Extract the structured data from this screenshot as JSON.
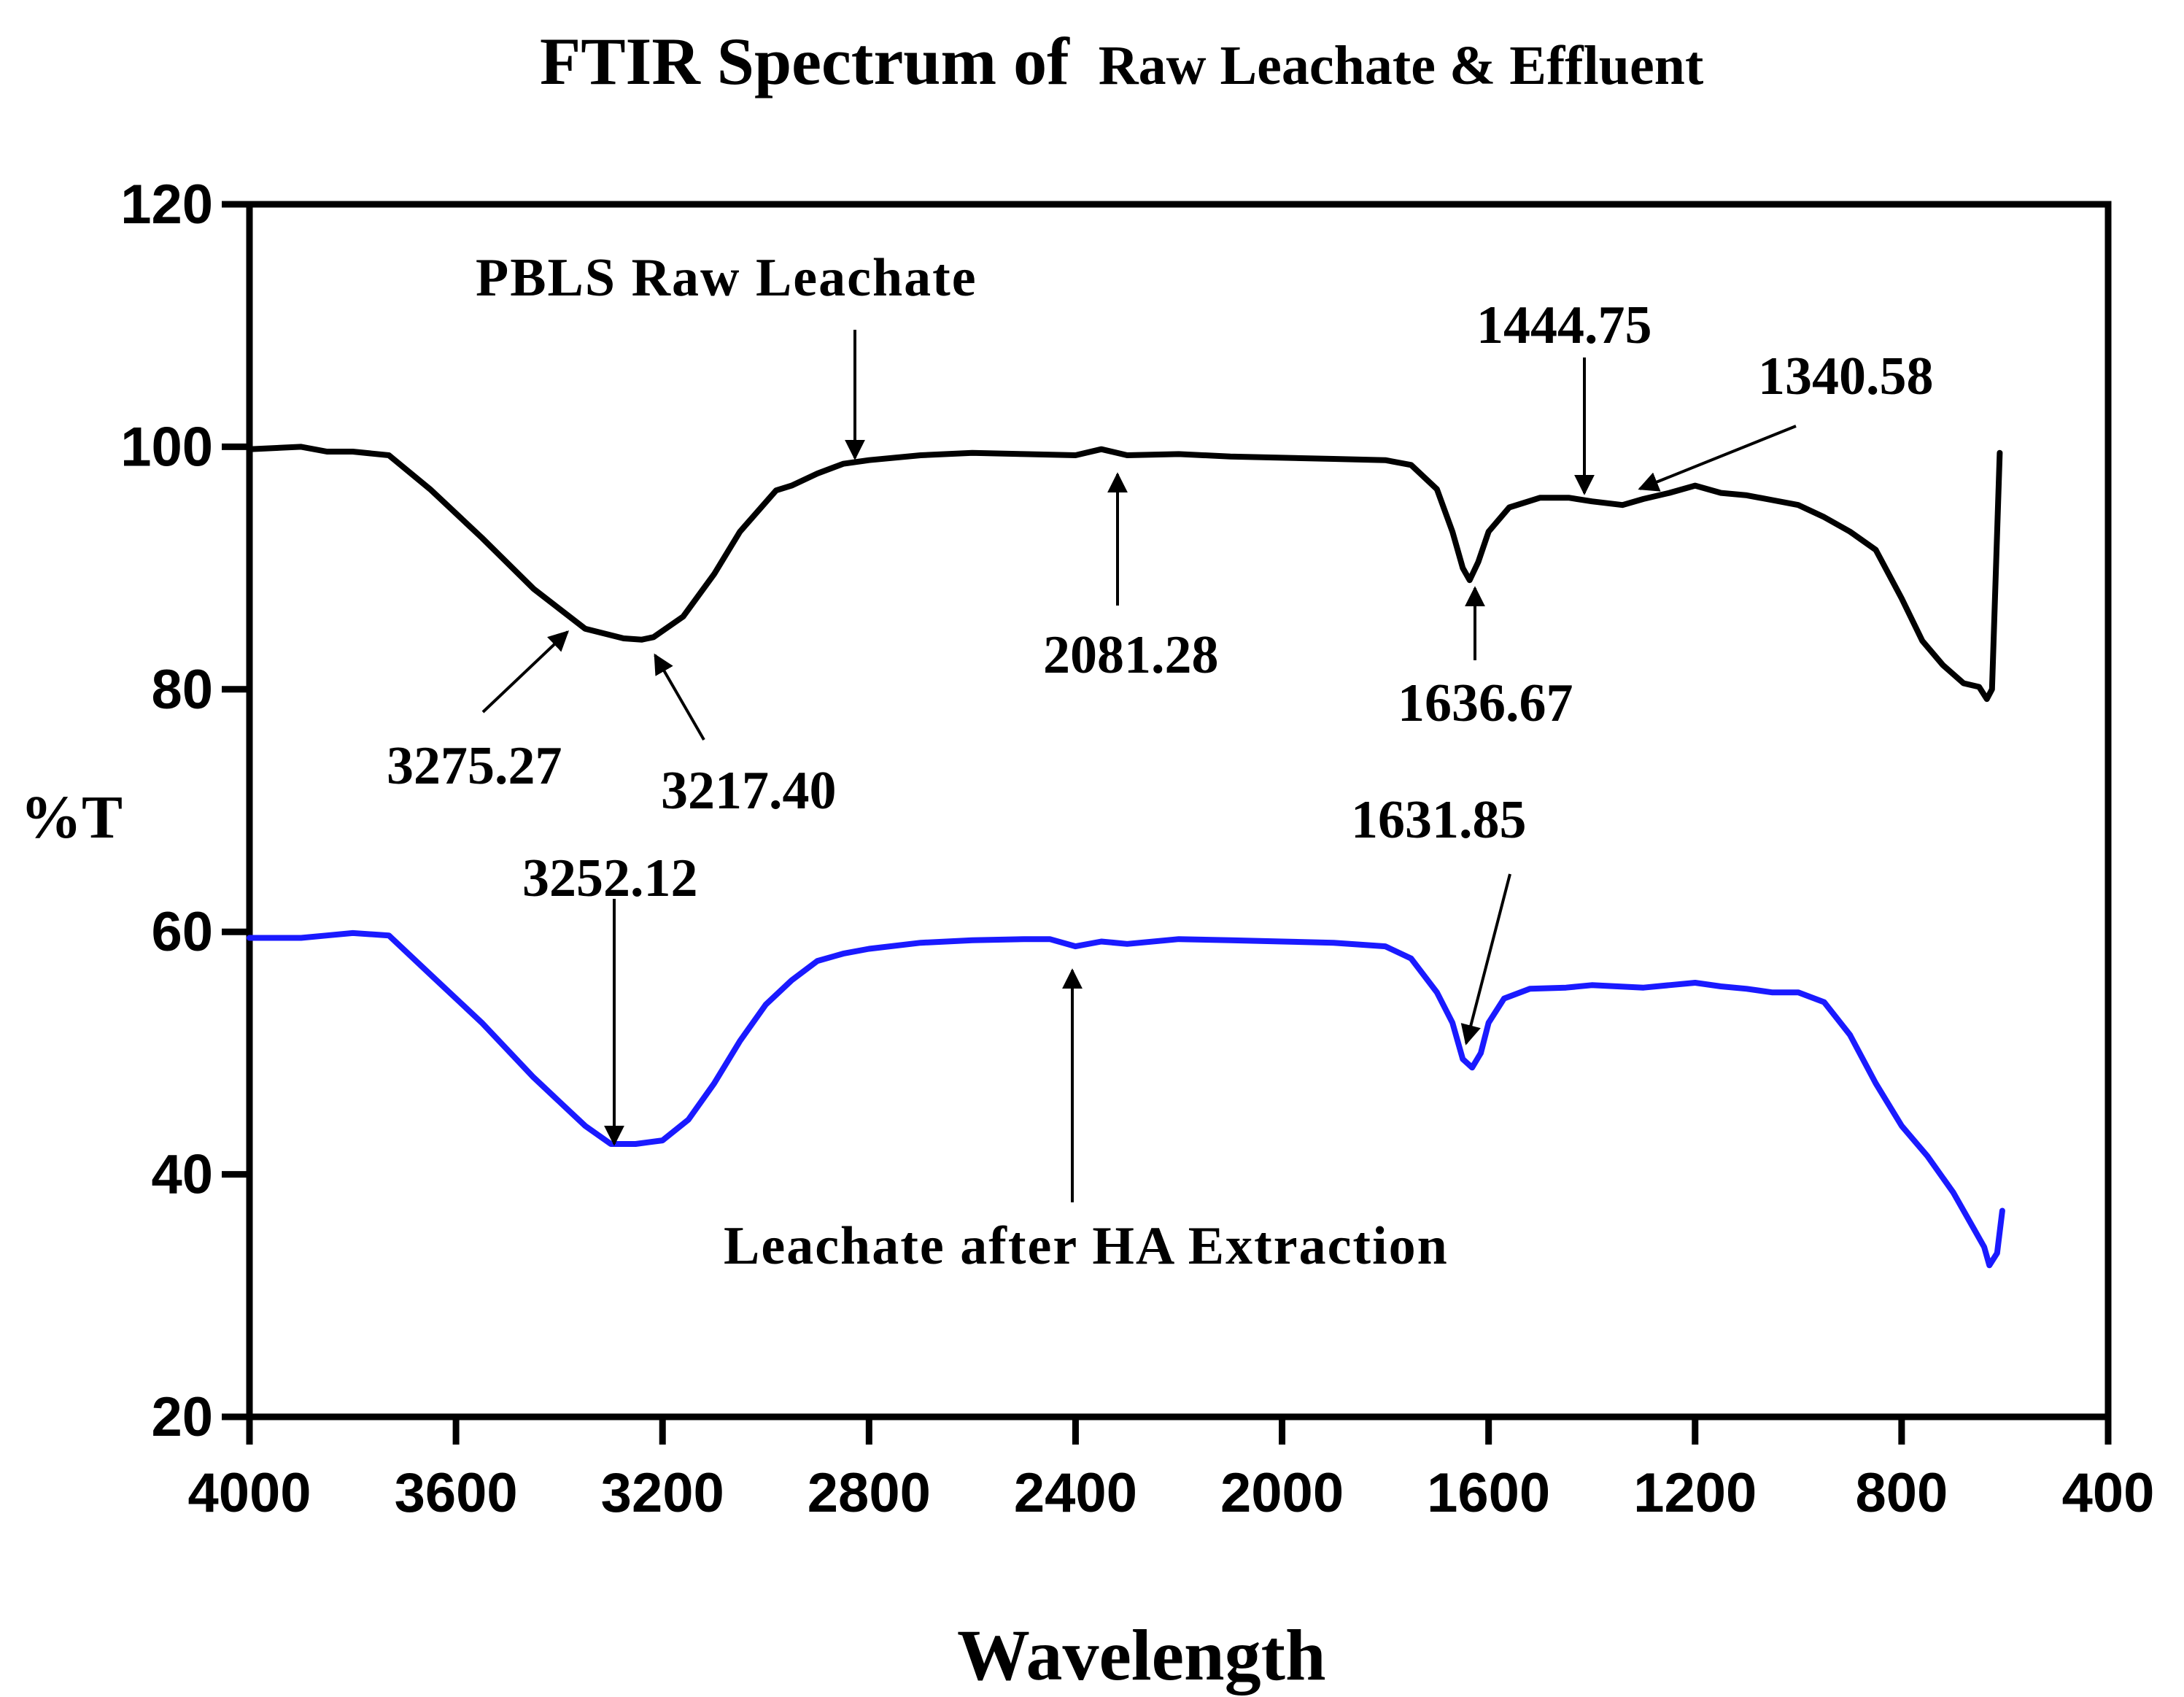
{
  "chart_data": {
    "type": "line",
    "title": {
      "main": "FTIR Spectrum of",
      "sub": "Raw Leachate  & Effluent"
    },
    "xlabel": "Wavelength",
    "ylabel": "%T",
    "xlim": [
      4000,
      400
    ],
    "ylim": [
      20,
      120
    ],
    "x_ticks": [
      "4000",
      "3600",
      "3200",
      "2800",
      "2400",
      "2000",
      "1600",
      "1200",
      "800",
      "400"
    ],
    "y_ticks": [
      "20",
      "40",
      "60",
      "80",
      "100",
      "120"
    ],
    "grid": false,
    "legend": "none",
    "colors": {
      "raw": "#000000",
      "after": "#1a1aff"
    },
    "series": [
      {
        "name": "PBLS Raw Leachate",
        "color": "#000000",
        "points": [
          [
            4000,
            99.8
          ],
          [
            3900,
            100.0
          ],
          [
            3850,
            99.6
          ],
          [
            3800,
            99.6
          ],
          [
            3730,
            99.3
          ],
          [
            3650,
            96.5
          ],
          [
            3550,
            92.5
          ],
          [
            3450,
            88.3
          ],
          [
            3350,
            85.0
          ],
          [
            3275.27,
            84.2
          ],
          [
            3240,
            84.1
          ],
          [
            3217.4,
            84.3
          ],
          [
            3160,
            86.0
          ],
          [
            3100,
            89.5
          ],
          [
            3050,
            93.0
          ],
          [
            2980,
            96.4
          ],
          [
            2950,
            96.8
          ],
          [
            2900,
            97.8
          ],
          [
            2850,
            98.6
          ],
          [
            2800,
            98.9
          ],
          [
            2700,
            99.3
          ],
          [
            2600,
            99.5
          ],
          [
            2500,
            99.4
          ],
          [
            2400,
            99.3
          ],
          [
            2350,
            99.8
          ],
          [
            2300,
            99.3
          ],
          [
            2200,
            99.4
          ],
          [
            2100,
            99.2
          ],
          [
            2000,
            99.1
          ],
          [
            1900,
            99.0
          ],
          [
            1800,
            98.9
          ],
          [
            1750,
            98.5
          ],
          [
            1700,
            96.5
          ],
          [
            1670,
            93.0
          ],
          [
            1650,
            90.0
          ],
          [
            1636.67,
            89.0
          ],
          [
            1620,
            90.5
          ],
          [
            1600,
            93.0
          ],
          [
            1560,
            95.0
          ],
          [
            1500,
            95.8
          ],
          [
            1444.75,
            95.8
          ],
          [
            1400,
            95.5
          ],
          [
            1340.58,
            95.2
          ],
          [
            1300,
            95.7
          ],
          [
            1250,
            96.2
          ],
          [
            1200,
            96.8
          ],
          [
            1150,
            96.2
          ],
          [
            1100,
            96.0
          ],
          [
            1050,
            95.6
          ],
          [
            1000,
            95.2
          ],
          [
            950,
            94.2
          ],
          [
            900,
            93.0
          ],
          [
            850,
            91.5
          ],
          [
            800,
            87.5
          ],
          [
            760,
            84.0
          ],
          [
            720,
            82.0
          ],
          [
            680,
            80.5
          ],
          [
            650,
            80.2
          ],
          [
            635,
            79.2
          ],
          [
            625,
            80.0
          ],
          [
            610,
            99.5
          ]
        ]
      },
      {
        "name": "Leachate after HA Extraction",
        "color": "#1a1aff",
        "points": [
          [
            4000,
            59.5
          ],
          [
            3900,
            59.5
          ],
          [
            3850,
            59.7
          ],
          [
            3800,
            59.9
          ],
          [
            3730,
            59.7
          ],
          [
            3650,
            56.5
          ],
          [
            3550,
            52.5
          ],
          [
            3450,
            48.0
          ],
          [
            3350,
            44.0
          ],
          [
            3300,
            42.5
          ],
          [
            3252.12,
            42.5
          ],
          [
            3200,
            42.8
          ],
          [
            3150,
            44.5
          ],
          [
            3100,
            47.5
          ],
          [
            3050,
            51.0
          ],
          [
            3000,
            54.0
          ],
          [
            2950,
            56.0
          ],
          [
            2900,
            57.6
          ],
          [
            2850,
            58.2
          ],
          [
            2800,
            58.6
          ],
          [
            2700,
            59.1
          ],
          [
            2600,
            59.3
          ],
          [
            2500,
            59.4
          ],
          [
            2450,
            59.4
          ],
          [
            2400,
            58.8
          ],
          [
            2350,
            59.2
          ],
          [
            2300,
            59.0
          ],
          [
            2200,
            59.4
          ],
          [
            2100,
            59.3
          ],
          [
            2000,
            59.2
          ],
          [
            1900,
            59.1
          ],
          [
            1800,
            58.8
          ],
          [
            1750,
            57.8
          ],
          [
            1700,
            55.0
          ],
          [
            1670,
            52.5
          ],
          [
            1650,
            49.5
          ],
          [
            1631.85,
            48.8
          ],
          [
            1615,
            50.0
          ],
          [
            1600,
            52.5
          ],
          [
            1570,
            54.5
          ],
          [
            1520,
            55.3
          ],
          [
            1450,
            55.4
          ],
          [
            1400,
            55.6
          ],
          [
            1350,
            55.5
          ],
          [
            1300,
            55.4
          ],
          [
            1250,
            55.6
          ],
          [
            1200,
            55.8
          ],
          [
            1150,
            55.5
          ],
          [
            1100,
            55.3
          ],
          [
            1050,
            55.0
          ],
          [
            1000,
            55.0
          ],
          [
            950,
            54.2
          ],
          [
            900,
            51.5
          ],
          [
            850,
            47.5
          ],
          [
            800,
            44.0
          ],
          [
            750,
            41.5
          ],
          [
            700,
            38.5
          ],
          [
            660,
            35.5
          ],
          [
            640,
            34.0
          ],
          [
            630,
            32.5
          ],
          [
            615,
            33.5
          ],
          [
            605,
            37.0
          ]
        ]
      }
    ],
    "series_labels": [
      {
        "text": "PBLS Raw Leachate"
      },
      {
        "text": "Leachate after HA Extraction"
      }
    ],
    "annotations": [
      {
        "text": "3275.27",
        "x": 3275.27,
        "y": 84.2
      },
      {
        "text": "3217.40",
        "x": 3217.4,
        "y": 84.3
      },
      {
        "text": "2081.28",
        "x": 2320,
        "y": 99.2
      },
      {
        "text": "1636.67",
        "x": 1636.67,
        "y": 89.0
      },
      {
        "text": "1444.75",
        "x": 1444.75,
        "y": 95.8
      },
      {
        "text": "1340.58",
        "x": 1340.58,
        "y": 95.2
      },
      {
        "text": "3252.12",
        "x": 3252.12,
        "y": 42.5
      },
      {
        "text": "1631.85",
        "x": 1631.85,
        "y": 48.8
      }
    ]
  }
}
